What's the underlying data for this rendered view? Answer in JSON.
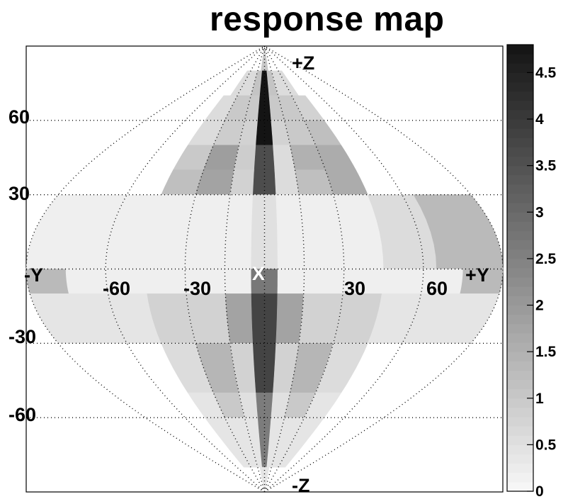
{
  "chart_data": {
    "type": "heatmap",
    "title": "response map",
    "projection": "sinusoidal (equal-area) sky projection with dotted graticule",
    "colorbar": {
      "min": 0,
      "max": 4.8,
      "ticks": [
        "0",
        "0.5",
        "1",
        "1.5",
        "2",
        "2.5",
        "3",
        "3.5",
        "4",
        "4.5"
      ],
      "colormap": "grayscale, light (0) to dark (4.8)"
    },
    "longitude_labels": [
      "-60",
      "-30",
      "30",
      "60"
    ],
    "latitude_labels": [
      "60",
      "30",
      "-30",
      "-60"
    ],
    "axis_markers": {
      "plus_z": "+Z",
      "minus_z": "-Z",
      "minus_y": "-Y",
      "plus_y": "+Y",
      "x": "X"
    },
    "grid": true,
    "bands": [
      {
        "lat": [
          80,
          90
        ],
        "cells": [
          [
            -15,
            15,
            1.0
          ]
        ]
      },
      {
        "lat": [
          70,
          80
        ],
        "cells": [
          [
            -75,
            -30,
            0.6
          ],
          [
            -30,
            -10,
            1.1
          ],
          [
            -10,
            10,
            4.8
          ],
          [
            10,
            30,
            1.1
          ],
          [
            30,
            75,
            0.6
          ]
        ]
      },
      {
        "lat": [
          60,
          70
        ],
        "cells": [
          [
            -90,
            -60,
            0.6
          ],
          [
            -60,
            -30,
            1.0
          ],
          [
            -30,
            -10,
            1.0
          ],
          [
            -10,
            10,
            4.8
          ],
          [
            10,
            30,
            1.0
          ],
          [
            30,
            60,
            1.0
          ],
          [
            60,
            90,
            0.8
          ]
        ]
      },
      {
        "lat": [
          50,
          60
        ],
        "cells": [
          [
            -90,
            -60,
            0.6
          ],
          [
            -60,
            -30,
            0.9
          ],
          [
            -30,
            -10,
            0.8
          ],
          [
            -10,
            10,
            4.8
          ],
          [
            10,
            30,
            0.8
          ],
          [
            30,
            60,
            1.0
          ],
          [
            60,
            90,
            1.2
          ]
        ]
      },
      {
        "lat": [
          40,
          50
        ],
        "cells": [
          [
            -90,
            -60,
            1.0
          ],
          [
            -60,
            -30,
            1.9
          ],
          [
            -30,
            -10,
            0.9
          ],
          [
            -10,
            10,
            3.6
          ],
          [
            10,
            30,
            0.6
          ],
          [
            30,
            60,
            1.5
          ],
          [
            60,
            90,
            1.6
          ]
        ]
      },
      {
        "lat": [
          30,
          40
        ],
        "cells": [
          [
            -90,
            -60,
            1.2
          ],
          [
            -60,
            -30,
            1.8
          ],
          [
            -30,
            -10,
            0.8
          ],
          [
            -10,
            10,
            3.6
          ],
          [
            10,
            30,
            0.6
          ],
          [
            30,
            60,
            1.2
          ],
          [
            60,
            90,
            1.6
          ]
        ]
      },
      {
        "lat": [
          0,
          30
        ],
        "cells": [
          [
            -180,
            -90,
            0.2
          ],
          [
            -90,
            -10,
            0.2
          ],
          [
            -10,
            10,
            0.5
          ],
          [
            10,
            90,
            0.2
          ],
          [
            90,
            130,
            0.6
          ],
          [
            130,
            180,
            1.3
          ]
        ]
      },
      {
        "lat": [
          -10,
          0
        ],
        "cells": [
          [
            -180,
            -150,
            1.3
          ],
          [
            -150,
            -10,
            0.2
          ],
          [
            -10,
            10,
            2.7
          ],
          [
            10,
            150,
            0.2
          ],
          [
            150,
            180,
            1.3
          ]
        ]
      },
      {
        "lat": [
          -30,
          -10
        ],
        "cells": [
          [
            -180,
            -90,
            0.4
          ],
          [
            -90,
            -30,
            0.8
          ],
          [
            -30,
            -10,
            1.8
          ],
          [
            -10,
            10,
            3.8
          ],
          [
            10,
            30,
            1.8
          ],
          [
            30,
            90,
            0.8
          ],
          [
            90,
            180,
            0.4
          ]
        ]
      },
      {
        "lat": [
          -50,
          -30
        ],
        "cells": [
          [
            -90,
            -60,
            0.6
          ],
          [
            -60,
            -30,
            1.4
          ],
          [
            -30,
            -10,
            0.8
          ],
          [
            -10,
            10,
            3.8
          ],
          [
            10,
            30,
            0.8
          ],
          [
            30,
            60,
            1.4
          ],
          [
            60,
            90,
            0.6
          ]
        ]
      },
      {
        "lat": [
          -60,
          -50
        ],
        "cells": [
          [
            -90,
            -60,
            0.4
          ],
          [
            -60,
            -30,
            1.0
          ],
          [
            -30,
            -10,
            0.5
          ],
          [
            -10,
            10,
            2.6
          ],
          [
            10,
            30,
            0.5
          ],
          [
            30,
            60,
            1.0
          ],
          [
            60,
            90,
            0.4
          ]
        ]
      },
      {
        "lat": [
          -80,
          -60
        ],
        "cells": [
          [
            -90,
            -30,
            0.4
          ],
          [
            -30,
            -10,
            0.4
          ],
          [
            -10,
            10,
            2.6
          ],
          [
            10,
            30,
            0.4
          ],
          [
            30,
            90,
            0.4
          ]
        ]
      },
      {
        "lat": [
          -90,
          -80
        ],
        "cells": [
          [
            -20,
            20,
            0.4
          ]
        ]
      }
    ]
  }
}
